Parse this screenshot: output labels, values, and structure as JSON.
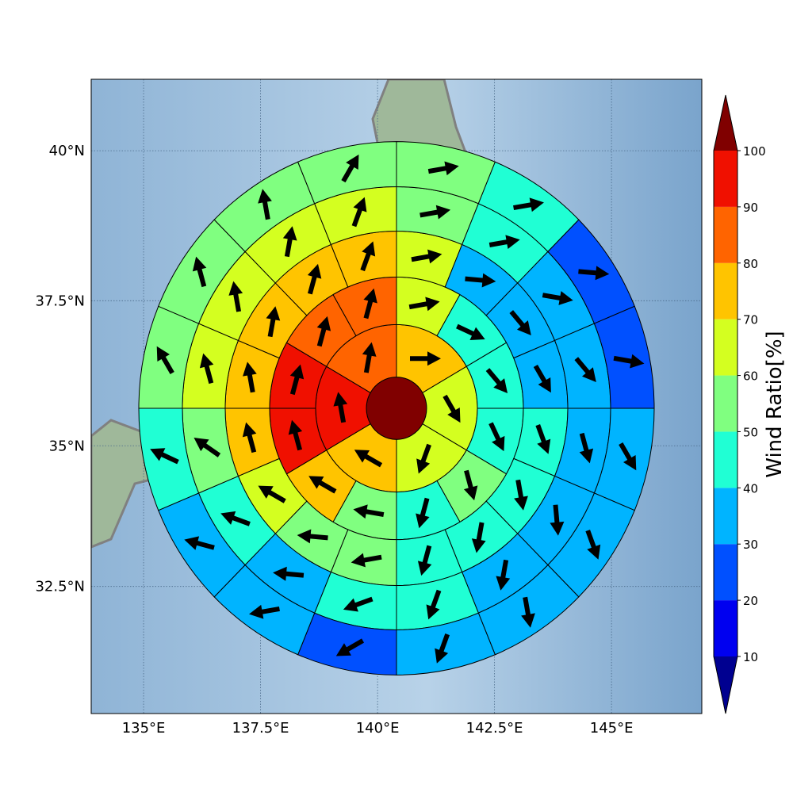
{
  "chart_data": {
    "type": "polar_sector_map",
    "xlim": [
      133.88,
      146.93
    ],
    "ylim": [
      30.18,
      41.16
    ],
    "xticks": [
      {
        "value": 135,
        "label": "135°E"
      },
      {
        "value": 137.5,
        "label": "137.5°E"
      },
      {
        "value": 140,
        "label": "140°E"
      },
      {
        "value": 142.5,
        "label": "142.5°E"
      },
      {
        "value": 145,
        "label": "145°E"
      }
    ],
    "yticks": [
      {
        "value": 32.5,
        "label": "32.5°N"
      },
      {
        "value": 35,
        "label": "35°N"
      },
      {
        "value": 37.5,
        "label": "37.5°N"
      },
      {
        "value": 40,
        "label": "40°N"
      }
    ],
    "grid": true,
    "colorbar": {
      "label": "Wind Ratio[%]",
      "ticks": [
        10,
        20,
        30,
        40,
        50,
        60,
        70,
        80,
        90,
        100
      ],
      "colors": [
        "#0000f0",
        "#0050ff",
        "#00b4ff",
        "#20ffd4",
        "#80ff80",
        "#d4ff20",
        "#ffc400",
        "#ff6400",
        "#f01000"
      ],
      "under_color": "#000090",
      "over_color": "#800000"
    },
    "center_value": 105,
    "rings": [
      {
        "values": [
          75,
          65,
          65,
          75,
          95,
          85
        ],
        "directions": [
          90,
          150,
          200,
          300,
          350,
          10
        ]
      },
      {
        "values": [
          65,
          45,
          45,
          45,
          55,
          45,
          55,
          75,
          95,
          95,
          85,
          85
        ],
        "directions": [
          80,
          115,
          140,
          155,
          165,
          195,
          280,
          300,
          345,
          15,
          15,
          15
        ]
      },
      {
        "values": [
          65,
          35,
          35,
          35,
          45,
          45,
          45,
          45,
          55,
          55,
          65,
          75,
          75,
          75,
          75,
          75
        ],
        "directions": [
          80,
          95,
          140,
          150,
          160,
          170,
          190,
          195,
          260,
          275,
          300,
          345,
          350,
          10,
          15,
          20
        ]
      },
      {
        "values": [
          55,
          45,
          35,
          35,
          35,
          35,
          35,
          45,
          45,
          35,
          45,
          55,
          65,
          65,
          65,
          65
        ],
        "directions": [
          80,
          80,
          100,
          140,
          165,
          175,
          190,
          200,
          250,
          275,
          290,
          305,
          345,
          350,
          10,
          20
        ]
      },
      {
        "values": [
          55,
          45,
          25,
          25,
          35,
          35,
          35,
          35,
          25,
          35,
          35,
          45,
          55,
          55,
          55,
          55
        ],
        "directions": [
          80,
          80,
          95,
          100,
          150,
          160,
          170,
          200,
          240,
          260,
          285,
          295,
          330,
          345,
          350,
          30
        ]
      }
    ]
  }
}
